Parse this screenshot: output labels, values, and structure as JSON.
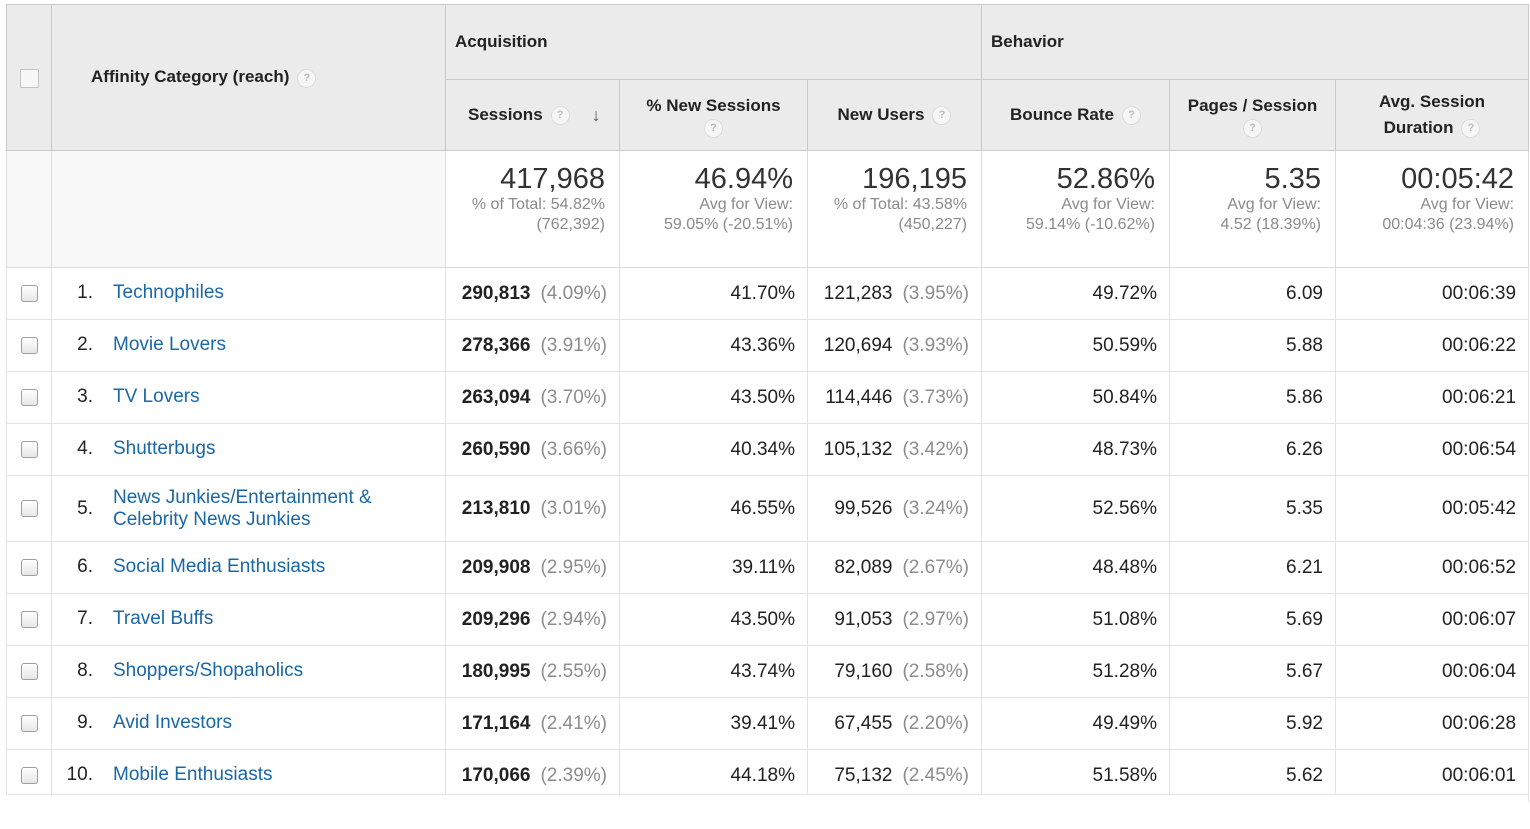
{
  "header": {
    "dimension_label": "Affinity Category (reach)",
    "groups": {
      "acquisition": "Acquisition",
      "behavior": "Behavior"
    },
    "columns": {
      "sessions": "Sessions",
      "new_sessions": "% New Sessions",
      "new_users": "New Users",
      "bounce_rate": "Bounce Rate",
      "pages_session": "Pages / Session",
      "avg_duration_1": "Avg. Session",
      "avg_duration_2": "Duration"
    },
    "help_glyph": "?",
    "sort_glyph": "↓"
  },
  "totals": {
    "sessions": {
      "value": "417,968",
      "line1": "% of Total: 54.82%",
      "line2": "(762,392)"
    },
    "new_sessions": {
      "value": "46.94%",
      "line1": "Avg for View:",
      "line2": "59.05% (-20.51%)"
    },
    "new_users": {
      "value": "196,195",
      "line1": "% of Total: 43.58%",
      "line2": "(450,227)"
    },
    "bounce_rate": {
      "value": "52.86%",
      "line1": "Avg for View:",
      "line2": "59.14% (-10.62%)"
    },
    "pages_session": {
      "value": "5.35",
      "line1": "Avg for View:",
      "line2": "4.52 (18.39%)"
    },
    "avg_duration": {
      "value": "00:05:42",
      "line1": "Avg for View:",
      "line2": "00:04:36 (23.94%)"
    }
  },
  "rows": [
    {
      "index": "1.",
      "name": "Technophiles",
      "sessions": "290,813",
      "sessions_pct": "(4.09%)",
      "new_sessions": "41.70%",
      "new_users": "121,283",
      "new_users_pct": "(3.95%)",
      "bounce_rate": "49.72%",
      "pages_session": "6.09",
      "avg_duration": "00:06:39"
    },
    {
      "index": "2.",
      "name": "Movie Lovers",
      "sessions": "278,366",
      "sessions_pct": "(3.91%)",
      "new_sessions": "43.36%",
      "new_users": "120,694",
      "new_users_pct": "(3.93%)",
      "bounce_rate": "50.59%",
      "pages_session": "5.88",
      "avg_duration": "00:06:22"
    },
    {
      "index": "3.",
      "name": "TV Lovers",
      "sessions": "263,094",
      "sessions_pct": "(3.70%)",
      "new_sessions": "43.50%",
      "new_users": "114,446",
      "new_users_pct": "(3.73%)",
      "bounce_rate": "50.84%",
      "pages_session": "5.86",
      "avg_duration": "00:06:21"
    },
    {
      "index": "4.",
      "name": "Shutterbugs",
      "sessions": "260,590",
      "sessions_pct": "(3.66%)",
      "new_sessions": "40.34%",
      "new_users": "105,132",
      "new_users_pct": "(3.42%)",
      "bounce_rate": "48.73%",
      "pages_session": "6.26",
      "avg_duration": "00:06:54"
    },
    {
      "index": "5.",
      "name": "News Junkies/Entertainment & Celebrity News Junkies",
      "sessions": "213,810",
      "sessions_pct": "(3.01%)",
      "new_sessions": "46.55%",
      "new_users": "99,526",
      "new_users_pct": "(3.24%)",
      "bounce_rate": "52.56%",
      "pages_session": "5.35",
      "avg_duration": "00:05:42"
    },
    {
      "index": "6.",
      "name": "Social Media Enthusiasts",
      "sessions": "209,908",
      "sessions_pct": "(2.95%)",
      "new_sessions": "39.11%",
      "new_users": "82,089",
      "new_users_pct": "(2.67%)",
      "bounce_rate": "48.48%",
      "pages_session": "6.21",
      "avg_duration": "00:06:52"
    },
    {
      "index": "7.",
      "name": "Travel Buffs",
      "sessions": "209,296",
      "sessions_pct": "(2.94%)",
      "new_sessions": "43.50%",
      "new_users": "91,053",
      "new_users_pct": "(2.97%)",
      "bounce_rate": "51.08%",
      "pages_session": "5.69",
      "avg_duration": "00:06:07"
    },
    {
      "index": "8.",
      "name": "Shoppers/Shopaholics",
      "sessions": "180,995",
      "sessions_pct": "(2.55%)",
      "new_sessions": "43.74%",
      "new_users": "79,160",
      "new_users_pct": "(2.58%)",
      "bounce_rate": "51.28%",
      "pages_session": "5.67",
      "avg_duration": "00:06:04"
    },
    {
      "index": "9.",
      "name": "Avid Investors",
      "sessions": "171,164",
      "sessions_pct": "(2.41%)",
      "new_sessions": "39.41%",
      "new_users": "67,455",
      "new_users_pct": "(2.20%)",
      "bounce_rate": "49.49%",
      "pages_session": "5.92",
      "avg_duration": "00:06:28"
    },
    {
      "index": "10.",
      "name": "Mobile Enthusiasts",
      "sessions": "170,066",
      "sessions_pct": "(2.39%)",
      "new_sessions": "44.18%",
      "new_users": "75,132",
      "new_users_pct": "(2.45%)",
      "bounce_rate": "51.58%",
      "pages_session": "5.62",
      "avg_duration": "00:06:01"
    }
  ],
  "colors": {
    "link": "#1a67a6",
    "header_bg": "#ebebeb",
    "muted": "#8c8c8c"
  }
}
